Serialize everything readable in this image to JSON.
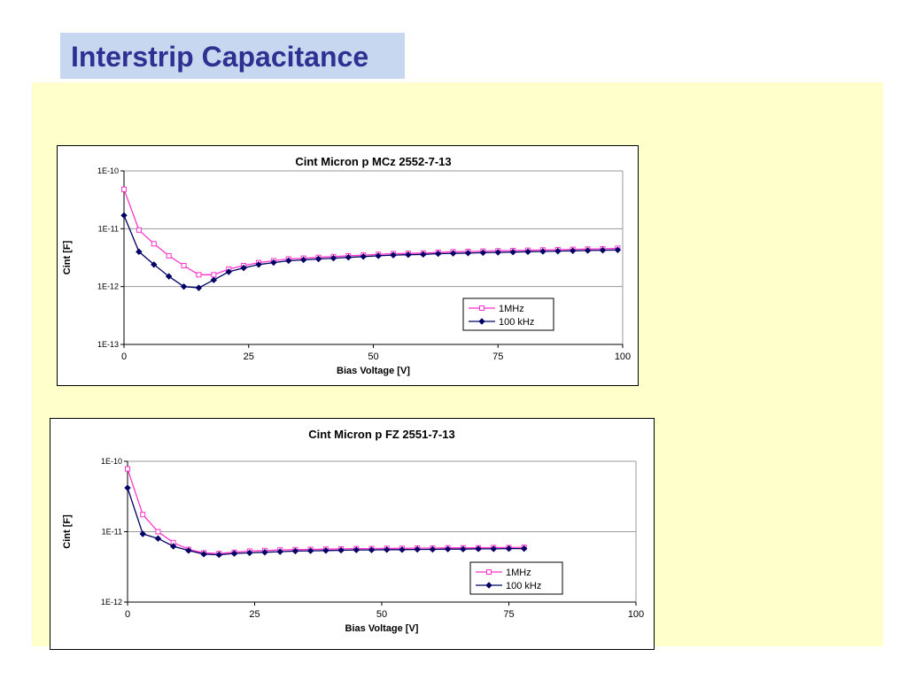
{
  "header": {
    "title": "Interstrip Capacitance"
  },
  "colors": {
    "title_bg": "#c7d7ef",
    "title_text": "#2f3192",
    "panel_bg": "#ffffcc",
    "series_1mhz": "#ff33cc",
    "series_100khz": "#000066"
  },
  "chart_data": [
    {
      "type": "line",
      "title": "Cint Micron p MCz 2552-7-13",
      "xlabel": "Bias Voltage [V]",
      "ylabel": "Cint [F]",
      "xlim": [
        0,
        100
      ],
      "ylim": [
        1e-13,
        1e-10
      ],
      "yscale": "log",
      "xticks": [
        "0",
        "25",
        "50",
        "75",
        "100"
      ],
      "yticks": [
        "1E-13",
        "1E-12",
        "1E-11",
        "1E-10"
      ],
      "legend_position": "lower-right",
      "grid": "horizontal",
      "series": [
        {
          "name": "1MHz",
          "marker": "square",
          "x": [
            0,
            3,
            6,
            9,
            12,
            15,
            18,
            21,
            24,
            27,
            30,
            33,
            36,
            39,
            42,
            45,
            48,
            51,
            54,
            57,
            60,
            63,
            66,
            69,
            72,
            75,
            78,
            81,
            84,
            87,
            90,
            93,
            96,
            99
          ],
          "y": [
            4.8e-11,
            9.5e-12,
            5.5e-12,
            3.4e-12,
            2.3e-12,
            1.6e-12,
            1.6e-12,
            2e-12,
            2.3e-12,
            2.6e-12,
            2.8e-12,
            3e-12,
            3.1e-12,
            3.2e-12,
            3.3e-12,
            3.4e-12,
            3.5e-12,
            3.6e-12,
            3.7e-12,
            3.75e-12,
            3.8e-12,
            3.9e-12,
            4e-12,
            4.05e-12,
            4.1e-12,
            4.15e-12,
            4.2e-12,
            4.25e-12,
            4.3e-12,
            4.35e-12,
            4.4e-12,
            4.45e-12,
            4.5e-12,
            4.6e-12
          ]
        },
        {
          "name": "100 kHz",
          "marker": "diamond",
          "x": [
            0,
            3,
            6,
            9,
            12,
            15,
            18,
            21,
            24,
            27,
            30,
            33,
            36,
            39,
            42,
            45,
            48,
            51,
            54,
            57,
            60,
            63,
            66,
            69,
            72,
            75,
            78,
            81,
            84,
            87,
            90,
            93,
            96,
            99
          ],
          "y": [
            1.7e-11,
            4e-12,
            2.4e-12,
            1.5e-12,
            1e-12,
            9.5e-13,
            1.3e-12,
            1.8e-12,
            2.1e-12,
            2.4e-12,
            2.6e-12,
            2.8e-12,
            2.9e-12,
            3e-12,
            3.1e-12,
            3.2e-12,
            3.3e-12,
            3.4e-12,
            3.5e-12,
            3.55e-12,
            3.6e-12,
            3.7e-12,
            3.75e-12,
            3.8e-12,
            3.85e-12,
            3.9e-12,
            3.95e-12,
            4e-12,
            4.05e-12,
            4.1e-12,
            4.15e-12,
            4.2e-12,
            4.25e-12,
            4.3e-12
          ]
        }
      ]
    },
    {
      "type": "line",
      "title": "Cint Micron p FZ 2551-7-13",
      "xlabel": "Bias Voltage [V]",
      "ylabel": "Cint [F]",
      "xlim": [
        0,
        100
      ],
      "ylim": [
        1e-12,
        1e-10
      ],
      "yscale": "log",
      "xticks": [
        "0",
        "25",
        "50",
        "75",
        "100"
      ],
      "yticks": [
        "1E-12",
        "1E-11",
        "1E-10"
      ],
      "legend_position": "lower-right",
      "grid": "horizontal",
      "series": [
        {
          "name": "1MHz",
          "marker": "square",
          "x": [
            0,
            3,
            6,
            9,
            12,
            15,
            18,
            21,
            24,
            27,
            30,
            33,
            36,
            39,
            42,
            45,
            48,
            51,
            54,
            57,
            60,
            63,
            66,
            69,
            72,
            75,
            78
          ],
          "y": [
            7.8e-11,
            1.75e-11,
            1e-11,
            7e-12,
            5.6e-12,
            5e-12,
            4.9e-12,
            5.1e-12,
            5.3e-12,
            5.4e-12,
            5.5e-12,
            5.55e-12,
            5.6e-12,
            5.65e-12,
            5.7e-12,
            5.75e-12,
            5.75e-12,
            5.8e-12,
            5.8e-12,
            5.85e-12,
            5.85e-12,
            5.9e-12,
            5.9e-12,
            5.9e-12,
            5.95e-12,
            5.95e-12,
            6e-12
          ]
        },
        {
          "name": "100 kHz",
          "marker": "diamond",
          "x": [
            0,
            3,
            6,
            9,
            12,
            15,
            18,
            21,
            24,
            27,
            30,
            33,
            36,
            39,
            42,
            45,
            48,
            51,
            54,
            57,
            60,
            63,
            66,
            69,
            72,
            75,
            78
          ],
          "y": [
            4.2e-11,
            9.3e-12,
            8e-12,
            6.2e-12,
            5.4e-12,
            4.8e-12,
            4.7e-12,
            4.9e-12,
            5e-12,
            5.1e-12,
            5.2e-12,
            5.3e-12,
            5.35e-12,
            5.4e-12,
            5.45e-12,
            5.5e-12,
            5.5e-12,
            5.55e-12,
            5.55e-12,
            5.6e-12,
            5.6e-12,
            5.65e-12,
            5.65e-12,
            5.7e-12,
            5.7e-12,
            5.75e-12,
            5.75e-12
          ]
        }
      ]
    }
  ]
}
